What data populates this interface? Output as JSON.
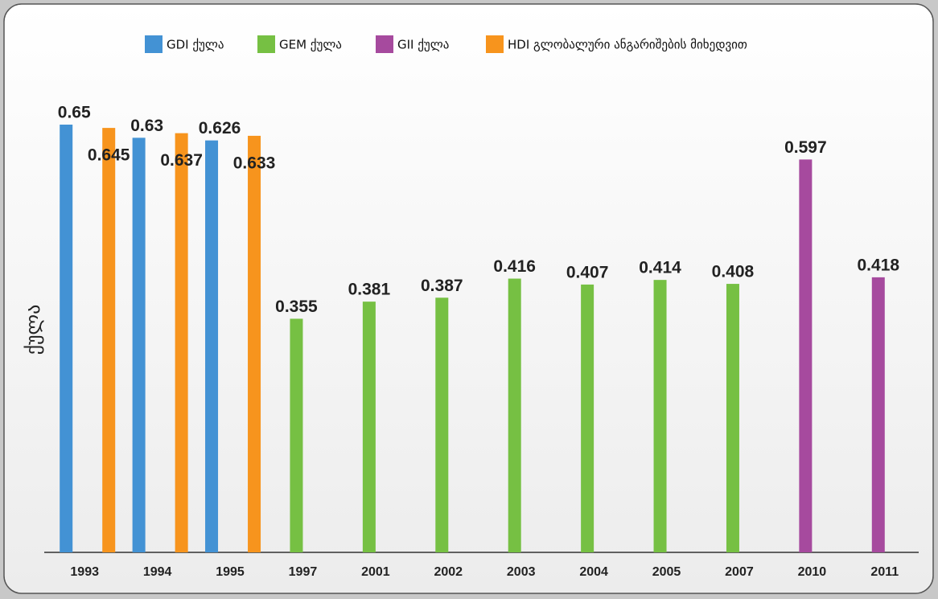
{
  "chart_data": {
    "type": "bar",
    "y_label": "ქულა",
    "legend": "top",
    "categories": [
      "1993",
      "1994",
      "1995",
      "1997",
      "2001",
      "2002",
      "2003",
      "2004",
      "2005",
      "2007",
      "2010",
      "2011"
    ],
    "series": [
      {
        "name": "GDI ქულა",
        "color": "#4392d4",
        "values": [
          0.65,
          0.63,
          0.626,
          null,
          null,
          null,
          null,
          null,
          null,
          null,
          null,
          null
        ]
      },
      {
        "name": "GEM ქულა",
        "color": "#76c043",
        "values": [
          null,
          null,
          null,
          0.355,
          0.381,
          0.387,
          0.416,
          0.407,
          0.414,
          0.408,
          null,
          null
        ]
      },
      {
        "name": "GII ქულა",
        "color": "#a64a9e",
        "values": [
          null,
          null,
          null,
          null,
          null,
          null,
          null,
          null,
          null,
          null,
          0.597,
          0.418
        ]
      },
      {
        "name": "HDI გლობალური ანგარიშების მიხედვით",
        "color": "#f7941d",
        "values": [
          0.645,
          0.637,
          0.633,
          null,
          null,
          null,
          null,
          null,
          null,
          null,
          null,
          null
        ]
      }
    ],
    "ylim": [
      0,
      0.65
    ]
  }
}
